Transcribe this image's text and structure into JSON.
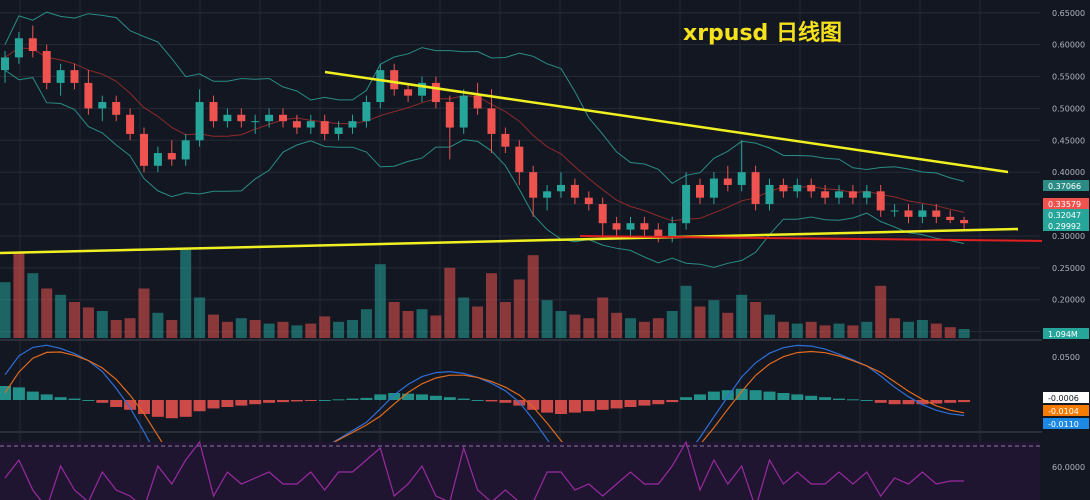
{
  "title": "xrpusd 日线图",
  "colors": {
    "background": "#131722",
    "grid": "#252a36",
    "up": "#26a69a",
    "down": "#ef5350",
    "trendline": "#f0f020",
    "support_red": "#e02020",
    "bollinger": "#2a8c85",
    "ma": "#8e2a2a",
    "macd_line": "#2e6fd8",
    "signal_line": "#e06a1e",
    "rsi": "#9a2aa0",
    "rsi_bg": "#1f1530",
    "title": "#f5e11c"
  },
  "chart_data": {
    "type": "candlestick",
    "symbol": "xrpusd",
    "timeframe": "日线图",
    "price_axis": {
      "ticks": [
        "0.65000",
        "0.60000",
        "0.55000",
        "0.50000",
        "0.45000",
        "0.40000",
        "0.35000",
        "0.30000",
        "0.25000",
        "0.20000",
        "0.15000"
      ],
      "ylim": [
        0.14,
        0.67
      ]
    },
    "highlight_labels": [
      {
        "value": "0.37066",
        "color": "#2a8c85"
      },
      {
        "value": "0.33579",
        "color": "#ef5350"
      },
      {
        "value": "0.32047",
        "color": "#26a69a"
      },
      {
        "value": "0.29992",
        "color": "#26a69a"
      },
      {
        "value": "1.094M",
        "color": "#26a69a"
      }
    ],
    "candles": [
      [
        0.56,
        0.59,
        0.54,
        0.58
      ],
      [
        0.58,
        0.62,
        0.57,
        0.61
      ],
      [
        0.61,
        0.63,
        0.58,
        0.59
      ],
      [
        0.59,
        0.6,
        0.53,
        0.54
      ],
      [
        0.54,
        0.57,
        0.52,
        0.56
      ],
      [
        0.56,
        0.57,
        0.53,
        0.54
      ],
      [
        0.54,
        0.56,
        0.49,
        0.5
      ],
      [
        0.5,
        0.52,
        0.48,
        0.51
      ],
      [
        0.51,
        0.52,
        0.48,
        0.49
      ],
      [
        0.49,
        0.5,
        0.45,
        0.46
      ],
      [
        0.46,
        0.47,
        0.4,
        0.41
      ],
      [
        0.41,
        0.44,
        0.4,
        0.43
      ],
      [
        0.43,
        0.45,
        0.41,
        0.42
      ],
      [
        0.42,
        0.46,
        0.41,
        0.45
      ],
      [
        0.45,
        0.53,
        0.44,
        0.51
      ],
      [
        0.51,
        0.52,
        0.47,
        0.48
      ],
      [
        0.48,
        0.5,
        0.47,
        0.49
      ],
      [
        0.49,
        0.5,
        0.47,
        0.48
      ],
      [
        0.48,
        0.49,
        0.46,
        0.48
      ],
      [
        0.48,
        0.5,
        0.47,
        0.49
      ],
      [
        0.49,
        0.5,
        0.47,
        0.48
      ],
      [
        0.48,
        0.49,
        0.46,
        0.47
      ],
      [
        0.47,
        0.49,
        0.46,
        0.48
      ],
      [
        0.48,
        0.49,
        0.45,
        0.46
      ],
      [
        0.46,
        0.48,
        0.45,
        0.47
      ],
      [
        0.47,
        0.49,
        0.46,
        0.48
      ],
      [
        0.48,
        0.52,
        0.47,
        0.51
      ],
      [
        0.51,
        0.57,
        0.5,
        0.56
      ],
      [
        0.56,
        0.57,
        0.52,
        0.53
      ],
      [
        0.53,
        0.54,
        0.51,
        0.52
      ],
      [
        0.52,
        0.55,
        0.51,
        0.54
      ],
      [
        0.54,
        0.55,
        0.5,
        0.51
      ],
      [
        0.51,
        0.52,
        0.42,
        0.47
      ],
      [
        0.47,
        0.53,
        0.46,
        0.52
      ],
      [
        0.52,
        0.54,
        0.49,
        0.5
      ],
      [
        0.5,
        0.53,
        0.43,
        0.46
      ],
      [
        0.46,
        0.47,
        0.43,
        0.44
      ],
      [
        0.44,
        0.45,
        0.38,
        0.4
      ],
      [
        0.4,
        0.41,
        0.33,
        0.36
      ],
      [
        0.36,
        0.38,
        0.34,
        0.37
      ],
      [
        0.37,
        0.4,
        0.36,
        0.38
      ],
      [
        0.38,
        0.39,
        0.35,
        0.36
      ],
      [
        0.36,
        0.37,
        0.34,
        0.35
      ],
      [
        0.35,
        0.36,
        0.3,
        0.32
      ],
      [
        0.32,
        0.33,
        0.3,
        0.31
      ],
      [
        0.31,
        0.33,
        0.3,
        0.32
      ],
      [
        0.32,
        0.33,
        0.3,
        0.31
      ],
      [
        0.31,
        0.32,
        0.29,
        0.3
      ],
      [
        0.3,
        0.33,
        0.29,
        0.32
      ],
      [
        0.32,
        0.4,
        0.31,
        0.38
      ],
      [
        0.38,
        0.39,
        0.35,
        0.36
      ],
      [
        0.36,
        0.4,
        0.35,
        0.39
      ],
      [
        0.39,
        0.41,
        0.37,
        0.38
      ],
      [
        0.38,
        0.45,
        0.37,
        0.4
      ],
      [
        0.4,
        0.41,
        0.34,
        0.35
      ],
      [
        0.35,
        0.39,
        0.34,
        0.38
      ],
      [
        0.38,
        0.39,
        0.36,
        0.37
      ],
      [
        0.37,
        0.39,
        0.36,
        0.38
      ],
      [
        0.38,
        0.39,
        0.36,
        0.37
      ],
      [
        0.37,
        0.38,
        0.35,
        0.36
      ],
      [
        0.36,
        0.38,
        0.35,
        0.37
      ],
      [
        0.37,
        0.38,
        0.35,
        0.36
      ],
      [
        0.36,
        0.38,
        0.35,
        0.37
      ],
      [
        0.37,
        0.38,
        0.33,
        0.34
      ],
      [
        0.34,
        0.35,
        0.33,
        0.34
      ],
      [
        0.34,
        0.35,
        0.32,
        0.33
      ],
      [
        0.33,
        0.35,
        0.32,
        0.34
      ],
      [
        0.34,
        0.35,
        0.32,
        0.33
      ],
      [
        0.33,
        0.34,
        0.32,
        0.325
      ],
      [
        0.325,
        0.33,
        0.31,
        0.32
      ]
    ],
    "volume": [
      {
        "v": 0.62,
        "up": true
      },
      {
        "v": 0.95,
        "up": false
      },
      {
        "v": 0.72,
        "up": true
      },
      {
        "v": 0.55,
        "up": false
      },
      {
        "v": 0.48,
        "up": true
      },
      {
        "v": 0.4,
        "up": false
      },
      {
        "v": 0.34,
        "up": false
      },
      {
        "v": 0.3,
        "up": true
      },
      {
        "v": 0.2,
        "up": false
      },
      {
        "v": 0.22,
        "up": false
      },
      {
        "v": 0.55,
        "up": false
      },
      {
        "v": 0.28,
        "up": true
      },
      {
        "v": 0.2,
        "up": false
      },
      {
        "v": 0.98,
        "up": true
      },
      {
        "v": 0.45,
        "up": true
      },
      {
        "v": 0.26,
        "up": false
      },
      {
        "v": 0.18,
        "up": false
      },
      {
        "v": 0.22,
        "up": true
      },
      {
        "v": 0.2,
        "up": false
      },
      {
        "v": 0.16,
        "up": true
      },
      {
        "v": 0.18,
        "up": false
      },
      {
        "v": 0.14,
        "up": true
      },
      {
        "v": 0.16,
        "up": false
      },
      {
        "v": 0.24,
        "up": false
      },
      {
        "v": 0.18,
        "up": true
      },
      {
        "v": 0.2,
        "up": true
      },
      {
        "v": 0.32,
        "up": true
      },
      {
        "v": 0.82,
        "up": true
      },
      {
        "v": 0.4,
        "up": false
      },
      {
        "v": 0.3,
        "up": false
      },
      {
        "v": 0.32,
        "up": true
      },
      {
        "v": 0.25,
        "up": false
      },
      {
        "v": 0.78,
        "up": false
      },
      {
        "v": 0.45,
        "up": true
      },
      {
        "v": 0.35,
        "up": false
      },
      {
        "v": 0.72,
        "up": false
      },
      {
        "v": 0.4,
        "up": false
      },
      {
        "v": 0.65,
        "up": false
      },
      {
        "v": 0.92,
        "up": false
      },
      {
        "v": 0.42,
        "up": true
      },
      {
        "v": 0.3,
        "up": true
      },
      {
        "v": 0.26,
        "up": false
      },
      {
        "v": 0.22,
        "up": false
      },
      {
        "v": 0.45,
        "up": false
      },
      {
        "v": 0.28,
        "up": false
      },
      {
        "v": 0.22,
        "up": true
      },
      {
        "v": 0.18,
        "up": false
      },
      {
        "v": 0.22,
        "up": false
      },
      {
        "v": 0.3,
        "up": true
      },
      {
        "v": 0.58,
        "up": true
      },
      {
        "v": 0.35,
        "up": false
      },
      {
        "v": 0.42,
        "up": true
      },
      {
        "v": 0.28,
        "up": false
      },
      {
        "v": 0.48,
        "up": true
      },
      {
        "v": 0.4,
        "up": false
      },
      {
        "v": 0.26,
        "up": true
      },
      {
        "v": 0.18,
        "up": false
      },
      {
        "v": 0.16,
        "up": true
      },
      {
        "v": 0.18,
        "up": false
      },
      {
        "v": 0.14,
        "up": false
      },
      {
        "v": 0.16,
        "up": true
      },
      {
        "v": 0.14,
        "up": false
      },
      {
        "v": 0.18,
        "up": true
      },
      {
        "v": 0.58,
        "up": false
      },
      {
        "v": 0.22,
        "up": false
      },
      {
        "v": 0.18,
        "up": true
      },
      {
        "v": 0.2,
        "up": true
      },
      {
        "v": 0.16,
        "up": false
      },
      {
        "v": 0.12,
        "up": false
      },
      {
        "v": 0.1,
        "up": true
      }
    ],
    "macd_axis": {
      "ticks": [
        "0.0500"
      ]
    },
    "macd_labels": [
      {
        "value": "-0.0006",
        "color": "#ffffff",
        "text_color": "#131722"
      },
      {
        "value": "-0.0104",
        "color": "#f57c00",
        "text_color": "#ffffff"
      },
      {
        "value": "-0.0110",
        "color": "#1e88e5",
        "text_color": "#ffffff"
      }
    ],
    "macd_hist": [
      0.02,
      0.018,
      0.012,
      0.008,
      0.004,
      0.002,
      0.0,
      -0.004,
      -0.01,
      -0.014,
      -0.02,
      -0.024,
      -0.026,
      -0.024,
      -0.016,
      -0.012,
      -0.01,
      -0.008,
      -0.006,
      -0.004,
      -0.003,
      -0.002,
      -0.001,
      0.0,
      0.001,
      0.002,
      0.003,
      0.008,
      0.01,
      0.009,
      0.008,
      0.006,
      0.004,
      0.002,
      0.0,
      -0.002,
      -0.004,
      -0.008,
      -0.014,
      -0.018,
      -0.02,
      -0.018,
      -0.016,
      -0.014,
      -0.012,
      -0.01,
      -0.008,
      -0.006,
      -0.003,
      0.004,
      0.008,
      0.012,
      0.014,
      0.016,
      0.014,
      0.012,
      0.01,
      0.008,
      0.006,
      0.004,
      0.002,
      0.001,
      0.0,
      -0.004,
      -0.006,
      -0.006,
      -0.006,
      -0.005,
      -0.004,
      -0.003
    ],
    "rsi_axis": {
      "ticks": [
        "60.0000"
      ]
    }
  }
}
